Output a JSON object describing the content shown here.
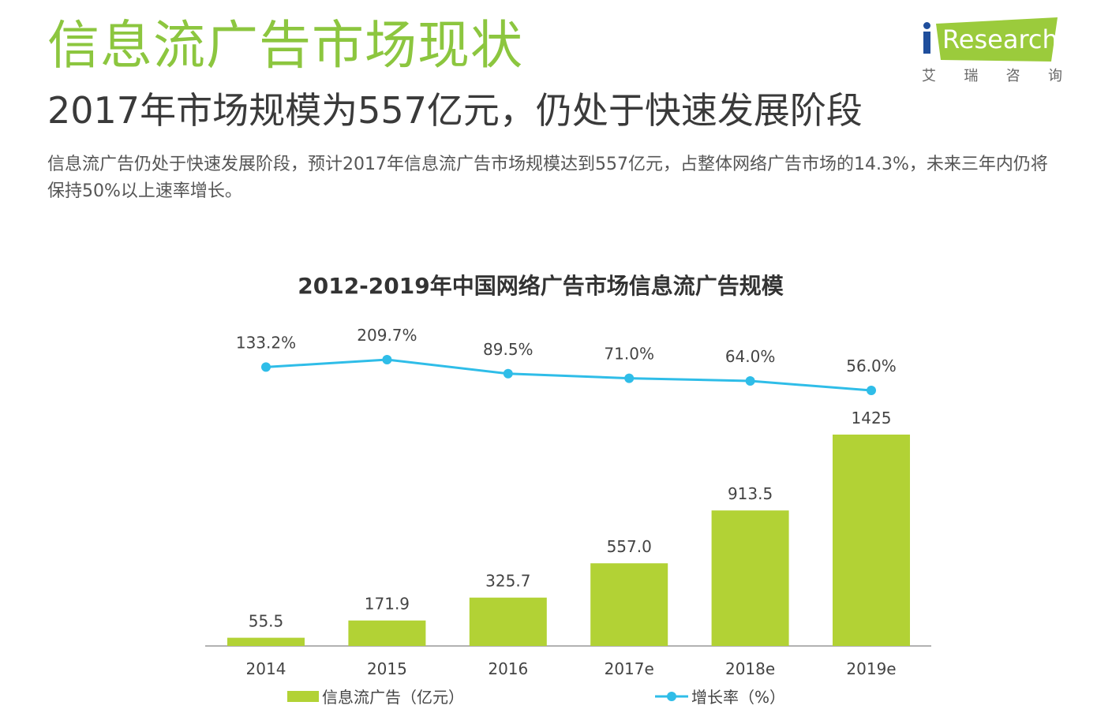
{
  "header": {
    "title": "信息流广告市场现状",
    "subtitle": "2017年市场规模为557亿元，仍处于快速发展阶段",
    "description": "信息流广告仍处于快速发展阶段，预计2017年信息流广告市场规模达到557亿元，占整体网络广告市场的14.3%，未来三年内仍将保持50%以上速率增长。"
  },
  "logo": {
    "wordmark": "Research",
    "cn_chars": [
      "艾",
      "瑞",
      "咨",
      "询"
    ]
  },
  "colors": {
    "title_green": "#8cc63f",
    "bar_green": "#b2d235",
    "line_blue": "#2fbde8",
    "logo_green": "#9bcb3c"
  },
  "chart_data": {
    "type": "bar",
    "title": "2012-2019年中国网络广告市场信息流广告规模",
    "categories": [
      "2014",
      "2015",
      "2016",
      "2017e",
      "2018e",
      "2019e"
    ],
    "series": [
      {
        "name": "信息流广告（亿元）",
        "type": "bar",
        "values": [
          55.5,
          171.9,
          325.7,
          557.0,
          913.5,
          1425
        ],
        "labels": [
          "55.5",
          "171.9",
          "325.7",
          "557.0",
          "913.5",
          "1425"
        ]
      },
      {
        "name": "增长率（%）",
        "type": "line",
        "values": [
          133.2,
          209.7,
          89.5,
          71.0,
          64.0,
          56.0
        ],
        "labels": [
          "133.2%",
          "209.7%",
          "89.5%",
          "71.0%",
          "64.0%",
          "56.0%"
        ]
      }
    ],
    "ylim_bar": [
      0,
      1425
    ],
    "ylim_line": [
      0,
      209.7
    ],
    "legend_position": "bottom",
    "grid": false
  }
}
